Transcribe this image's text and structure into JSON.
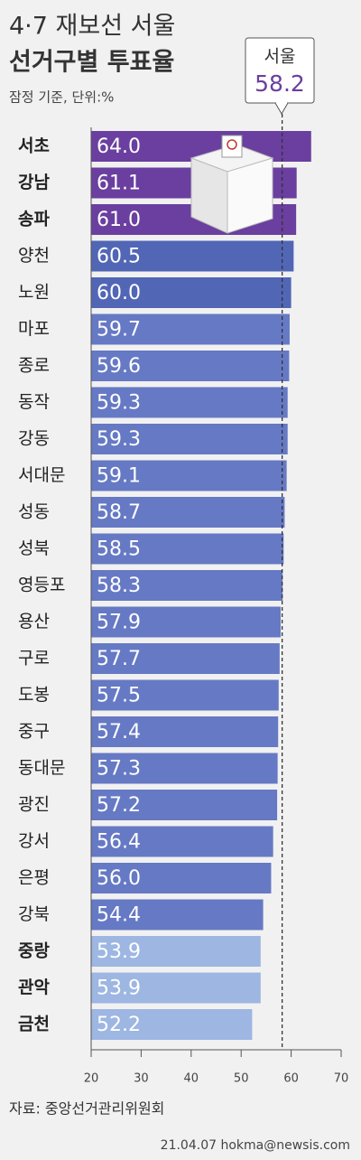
{
  "chart_data": {
    "type": "bar",
    "orientation": "horizontal",
    "title": "4·7 재보선 서울",
    "title_line2": "선거구별 투표율",
    "subtitle": "잠정 기준, 단위:%",
    "categories": [
      "서초",
      "강남",
      "송파",
      "양천",
      "노원",
      "마포",
      "종로",
      "동작",
      "강동",
      "서대문",
      "성동",
      "성북",
      "영등포",
      "용산",
      "구로",
      "도봉",
      "중구",
      "동대문",
      "광진",
      "강서",
      "은평",
      "강북",
      "중랑",
      "관악",
      "금천"
    ],
    "values": [
      64.0,
      61.1,
      61.0,
      60.5,
      60.0,
      59.7,
      59.6,
      59.3,
      59.3,
      59.1,
      58.7,
      58.5,
      58.3,
      57.9,
      57.7,
      57.5,
      57.4,
      57.3,
      57.2,
      56.4,
      56.0,
      54.4,
      53.9,
      53.9,
      52.2
    ],
    "value_labels": [
      "64.0",
      "61.1",
      "61.0",
      "60.5",
      "60.0",
      "59.7",
      "59.6",
      "59.3",
      "59.3",
      "59.1",
      "58.7",
      "58.5",
      "58.3",
      "57.9",
      "57.7",
      "57.5",
      "57.4",
      "57.3",
      "57.2",
      "56.4",
      "56.0",
      "54.4",
      "53.9",
      "53.9",
      "52.2"
    ],
    "colors": [
      "#6a3f9f",
      "#6a3f9f",
      "#6a3f9f",
      "#5266b6",
      "#5266b6",
      "#6679c4",
      "#6679c4",
      "#6679c4",
      "#6679c4",
      "#6679c4",
      "#6679c4",
      "#6679c4",
      "#6679c4",
      "#6679c4",
      "#6679c4",
      "#6679c4",
      "#6679c4",
      "#6679c4",
      "#6679c4",
      "#6679c4",
      "#6679c4",
      "#6679c4",
      "#9db6e2",
      "#9db6e2",
      "#9db6e2"
    ],
    "reference": {
      "label": "서울",
      "value": 58.2
    },
    "xlim": [
      20,
      70
    ],
    "xticks": [
      20,
      30,
      40,
      50,
      60,
      70
    ],
    "source": "자료: 중앙선거관리위원회",
    "credit": "21.04.07 hokma@newsis.com"
  }
}
